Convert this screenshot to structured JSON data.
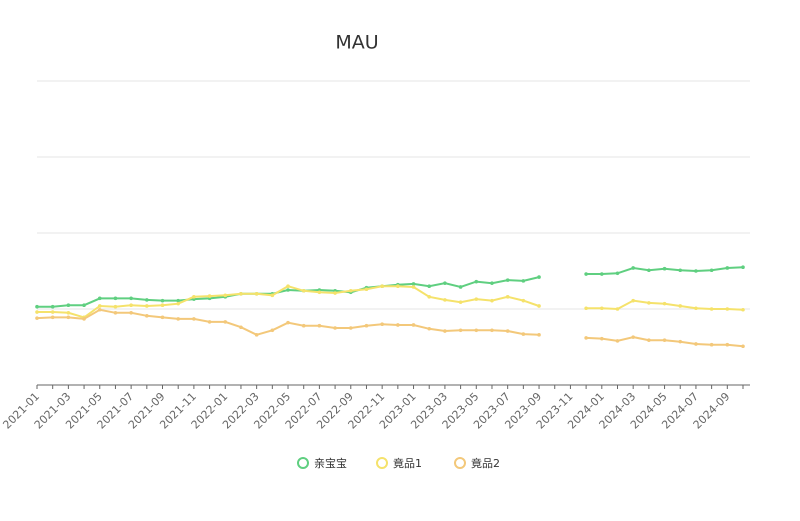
{
  "chart_data": {
    "type": "line",
    "title": "MAU",
    "categories": [
      "2021-01",
      null,
      "2021-03",
      null,
      "2021-05",
      null,
      "2021-07",
      null,
      "2021-09",
      null,
      "2021-11",
      null,
      "2022-01",
      null,
      "2022-03",
      null,
      "2022-05",
      null,
      "2022-07",
      null,
      "2022-09",
      null,
      "2022-11",
      null,
      "2023-01",
      null,
      "2023-03",
      null,
      "2023-05",
      null,
      "2023-07",
      null,
      "2023-09",
      null,
      "2023-11",
      null,
      "2024-01",
      null,
      "2024-03",
      null,
      "2024-05",
      null,
      "2024-07",
      null,
      "2024-09",
      null
    ],
    "series": [
      {
        "name": "亲宝宝",
        "color": "#5fcf80",
        "values": [
          103,
          103,
          105,
          105,
          114,
          114,
          114,
          112,
          111,
          111,
          113,
          114,
          116,
          120,
          120,
          120,
          125,
          124,
          125,
          124,
          122,
          128,
          130,
          132,
          133,
          130,
          134,
          129,
          136,
          134,
          138,
          137,
          142,
          null,
          null,
          146,
          146,
          147,
          154,
          151,
          153,
          151,
          150,
          151,
          154,
          155
        ]
      },
      {
        "name": "竟品1",
        "color": "#f5e26b",
        "values": [
          96,
          96,
          95,
          89,
          104,
          103,
          105,
          104,
          105,
          107,
          116,
          117,
          118,
          120,
          120,
          118,
          130,
          124,
          122,
          121,
          124,
          126,
          130,
          130,
          129,
          116,
          112,
          109,
          113,
          111,
          116,
          111,
          104,
          null,
          null,
          101,
          101,
          100,
          111,
          108,
          107,
          104,
          101,
          100,
          100,
          99
        ]
      },
      {
        "name": "竟品2",
        "color": "#f3c87a",
        "values": [
          88,
          89,
          89,
          87,
          99,
          95,
          95,
          91,
          89,
          87,
          87,
          83,
          83,
          76,
          66,
          72,
          82,
          78,
          78,
          75,
          75,
          78,
          80,
          79,
          79,
          74,
          71,
          72,
          72,
          72,
          71,
          67,
          66,
          null,
          null,
          62,
          61,
          58,
          63,
          59,
          59,
          57,
          54,
          53,
          53,
          51
        ]
      }
    ],
    "ylim": [
      0,
      400
    ],
    "yticks": [
      0,
      100,
      200,
      300,
      400
    ],
    "ytick_labels": false,
    "grid": true,
    "legend": "bottom"
  }
}
